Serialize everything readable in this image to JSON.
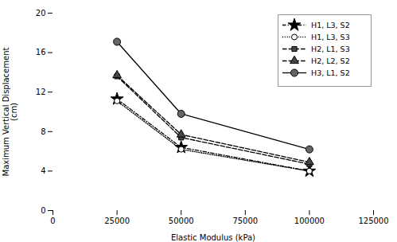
{
  "chart_data": {
    "type": "line",
    "xlabel": "Elastic Modulus (kPa)",
    "ylabel": "Maximum Vertical Displacement\n(cm)",
    "x": [
      25000,
      50000,
      100000
    ],
    "series": [
      {
        "name": "H1, L3, S2",
        "color": "#000000",
        "values": [
          11.3,
          6.4,
          4.0
        ],
        "marker": "star",
        "line_style": "dashdot"
      },
      {
        "name": "H1, L3, S3",
        "color": "#000000",
        "values": [
          11.1,
          6.2,
          4.0
        ],
        "marker": "circle_open",
        "line_style": "dotted"
      },
      {
        "name": "H2, L1, S3",
        "color": "#000000",
        "values": [
          13.6,
          7.4,
          4.7
        ],
        "marker": "square",
        "line_style": "dashed"
      },
      {
        "name": "H2, L2, S2",
        "color": "#000000",
        "values": [
          13.7,
          7.7,
          4.9
        ],
        "marker": "triangle",
        "line_style": "dashed"
      },
      {
        "name": "H3, L1, S2",
        "color": "#000000",
        "values": [
          17.1,
          9.8,
          6.2
        ],
        "marker": "circle",
        "line_style": "solid"
      }
    ],
    "xlim": [
      0,
      125000
    ],
    "xticks": [
      0,
      25000,
      50000,
      75000,
      100000,
      125000
    ],
    "ylim": [
      0,
      20
    ],
    "yticks": [
      0,
      4,
      8,
      12,
      16,
      20
    ],
    "legend": "upper right",
    "grid": false
  }
}
